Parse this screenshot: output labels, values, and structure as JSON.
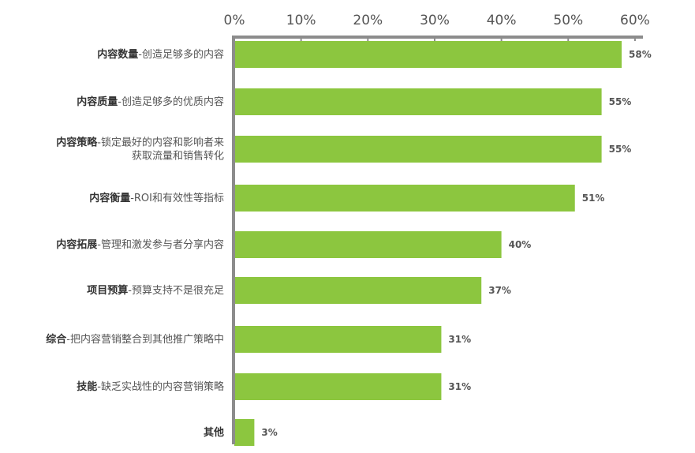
{
  "chart_data": {
    "type": "bar",
    "orientation": "horizontal",
    "title": "",
    "xlabel": "",
    "ylabel": "",
    "xlim": [
      0,
      60
    ],
    "x_ticks": [
      "0%",
      "10%",
      "20%",
      "30%",
      "40%",
      "50%",
      "60%"
    ],
    "x_tick_values": [
      0,
      10,
      20,
      30,
      40,
      50,
      60
    ],
    "axis_position": "top",
    "grid": false,
    "legend": false,
    "bar_color": "#8cc63f",
    "axis_color": "#8c8c8c",
    "text_color": "#555555",
    "categories": [
      {
        "bold": "内容数量",
        "rest": [
          "-创造足够多的内容"
        ]
      },
      {
        "bold": "内容质量",
        "rest": [
          "-创造足够多的优质内容"
        ]
      },
      {
        "bold": "内容策略",
        "rest": [
          "-锁定最好的内容和影响者来",
          "获取流量和销售转化"
        ]
      },
      {
        "bold": "内容衡量",
        "rest": [
          "-ROI和有效性等指标"
        ]
      },
      {
        "bold": "内容拓展",
        "rest": [
          "-管理和激发参与者分享内容"
        ]
      },
      {
        "bold": "项目预算",
        "rest": [
          "-预算支持不是很充足"
        ]
      },
      {
        "bold": "综合",
        "rest": [
          "-把内容营销整合到其他推广策略中"
        ]
      },
      {
        "bold": "技能",
        "rest": [
          "-缺乏实战性的内容营销策略"
        ]
      },
      {
        "bold": "其他",
        "rest": [
          ""
        ]
      }
    ],
    "values": [
      58,
      55,
      55,
      51,
      40,
      37,
      31,
      31,
      3
    ],
    "value_labels": [
      "58%",
      "55%",
      "55%",
      "51%",
      "40%",
      "37%",
      "31%",
      "31%",
      "3%"
    ]
  }
}
